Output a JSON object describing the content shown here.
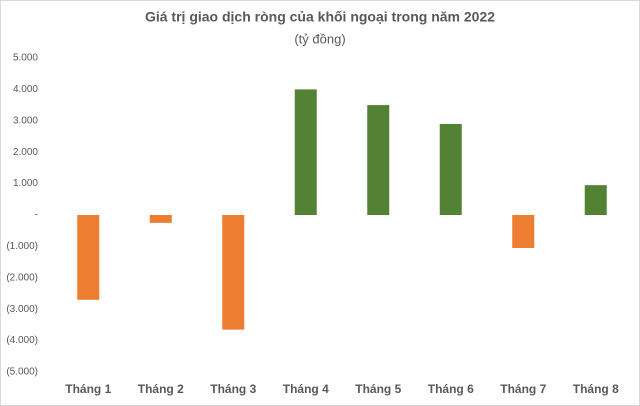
{
  "chart_data": {
    "type": "bar",
    "title": "Giá trị giao dịch ròng của khối ngoại trong năm 2022",
    "subtitle": "(tỷ đồng)",
    "categories": [
      "Tháng 1",
      "Tháng 2",
      "Tháng 3",
      "Tháng 4",
      "Tháng 5",
      "Tháng 6",
      "Tháng 7",
      "Tháng 8"
    ],
    "values": [
      -2700,
      -250,
      -3650,
      4000,
      3500,
      2900,
      -1050,
      950
    ],
    "color_positive": "#548235",
    "color_negative": "#ed7d31",
    "ylim": [
      -5000,
      5000
    ],
    "yticks": [
      {
        "value": -5000,
        "label": "(5.000)"
      },
      {
        "value": -4000,
        "label": "(4.000)"
      },
      {
        "value": -3000,
        "label": "(3.000)"
      },
      {
        "value": -2000,
        "label": "(2.000)"
      },
      {
        "value": -1000,
        "label": "(1.000)"
      },
      {
        "value": 0,
        "label": "-"
      },
      {
        "value": 1000,
        "label": "1.000"
      },
      {
        "value": 2000,
        "label": "2.000"
      },
      {
        "value": 3000,
        "label": "3.000"
      },
      {
        "value": 4000,
        "label": "4.000"
      },
      {
        "value": 5000,
        "label": "5.000"
      }
    ],
    "grid": false
  }
}
